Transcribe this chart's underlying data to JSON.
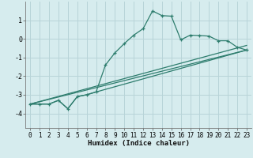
{
  "xlabel": "Humidex (Indice chaleur)",
  "xlim": [
    -0.5,
    23.5
  ],
  "ylim": [
    -4.8,
    2.0
  ],
  "yticks": [
    -4,
    -3,
    -2,
    -1,
    0,
    1
  ],
  "xticks": [
    0,
    1,
    2,
    3,
    4,
    5,
    6,
    7,
    8,
    9,
    10,
    11,
    12,
    13,
    14,
    15,
    16,
    17,
    18,
    19,
    20,
    21,
    22,
    23
  ],
  "bg_color": "#d6ecee",
  "grid_color": "#b8d4d8",
  "line_color": "#2e7d6e",
  "line1": {
    "x": [
      0,
      1,
      2,
      3,
      4,
      5,
      6,
      7,
      8,
      9,
      10,
      11,
      12,
      13,
      14,
      15,
      16,
      17,
      18,
      19,
      20,
      21,
      22,
      23
    ],
    "y": [
      -3.5,
      -3.5,
      -3.5,
      -3.3,
      -3.75,
      -3.1,
      -3.0,
      -2.85,
      -1.4,
      -0.75,
      -0.25,
      0.2,
      0.55,
      1.5,
      1.25,
      1.22,
      -0.05,
      0.2,
      0.18,
      0.15,
      -0.1,
      -0.1,
      -0.45,
      -0.6
    ]
  },
  "line2": {
    "x": [
      0,
      2,
      3,
      4,
      5,
      6,
      7,
      23
    ],
    "y": [
      -3.5,
      -3.5,
      -3.3,
      -3.75,
      -3.1,
      -3.0,
      -2.85,
      -0.6
    ]
  },
  "line3": {
    "x": [
      0,
      23
    ],
    "y": [
      -3.5,
      -0.6
    ]
  },
  "line4": {
    "x": [
      0,
      23
    ],
    "y": [
      -3.5,
      -0.35
    ]
  }
}
